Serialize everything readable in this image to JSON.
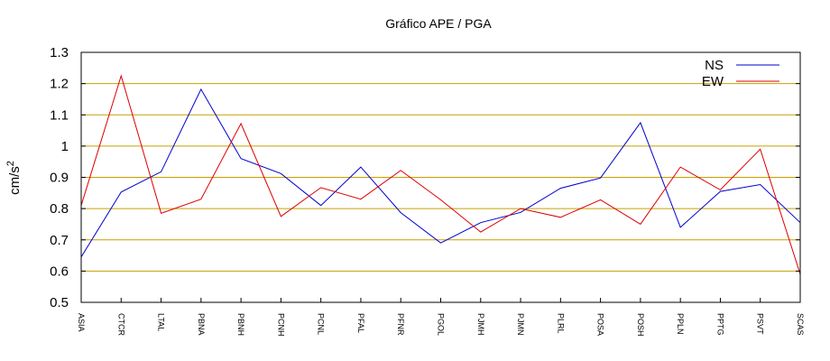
{
  "chart_data": {
    "type": "line",
    "title": "Gráfico  APE / PGA",
    "xlabel": "",
    "ylabel": "cm/s",
    "ylabel_superscript": "2",
    "ylim": [
      0.5,
      1.3
    ],
    "yticks": [
      "0.5",
      "0.6",
      "0.7",
      "0.8",
      "0.9",
      "1",
      "1.1",
      "1.2",
      "1.3"
    ],
    "grid": true,
    "grid_color": "#c8a000",
    "legend_position": "top-right",
    "categories": [
      "ASIA",
      "CTCR",
      "LTAL",
      "PBNA",
      "PBNH",
      "PCNH",
      "PCNL",
      "PFAL",
      "PFNR",
      "PGOL",
      "PJMH",
      "PJMN",
      "PLRL",
      "POSA",
      "POSH",
      "PPLN",
      "PPTG",
      "PSVT",
      "SCAS"
    ],
    "series": [
      {
        "name": "NS",
        "color": "#0000cc",
        "values": [
          0.645,
          0.853,
          0.918,
          1.182,
          0.96,
          0.912,
          0.81,
          0.933,
          0.787,
          0.69,
          0.755,
          0.788,
          0.865,
          0.898,
          1.075,
          0.74,
          0.855,
          0.877,
          0.755
        ]
      },
      {
        "name": "EW",
        "color": "#dd0000",
        "values": [
          0.81,
          1.225,
          0.785,
          0.83,
          1.072,
          0.775,
          0.867,
          0.83,
          0.922,
          0.828,
          0.725,
          0.8,
          0.772,
          0.828,
          0.75,
          0.933,
          0.86,
          0.99,
          0.59
        ]
      }
    ]
  }
}
